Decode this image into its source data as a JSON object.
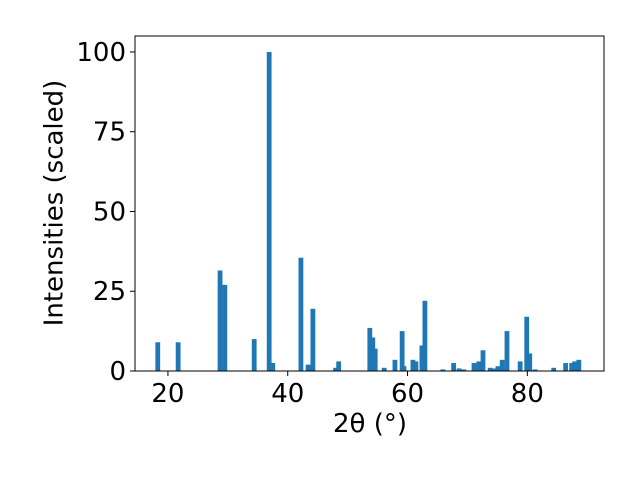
{
  "chart_data": {
    "type": "bar",
    "xlabel": "2θ (°)",
    "ylabel": "Intensities (scaled)",
    "x": [
      18.3,
      21.7,
      28.7,
      29.5,
      34.4,
      36.9,
      37.5,
      42.2,
      43.4,
      44.2,
      48.0,
      48.5,
      53.7,
      54.2,
      54.6,
      56.1,
      57.9,
      59.1,
      59.4,
      60.9,
      61.4,
      62.4,
      62.9,
      65.9,
      67.7,
      68.6,
      69.4,
      71.1,
      71.9,
      72.6,
      73.8,
      74.4,
      75.1,
      75.8,
      76.6,
      78.8,
      79.9,
      80.4,
      81.3,
      84.4,
      86.4,
      87.4,
      87.9,
      88.6
    ],
    "values": [
      9,
      9,
      31.5,
      27,
      10,
      100,
      2.5,
      35.5,
      2,
      19.5,
      1,
      3,
      13.5,
      10.5,
      7,
      1,
      3.5,
      12.5,
      1.5,
      3.5,
      3,
      8,
      22,
      0.5,
      2.5,
      0.8,
      0.5,
      2.5,
      3,
      6.5,
      1,
      0.8,
      1.5,
      3.5,
      12.5,
      3,
      17,
      5.5,
      0.5,
      1,
      2.5,
      2.5,
      3,
      3.5
    ],
    "color": "#1f77b4",
    "xlim": [
      14.5,
      92.8
    ],
    "xticks": [
      20,
      40,
      60,
      80
    ],
    "ylim": [
      0,
      105
    ],
    "yticks": [
      0,
      25,
      50,
      75,
      100
    ]
  }
}
